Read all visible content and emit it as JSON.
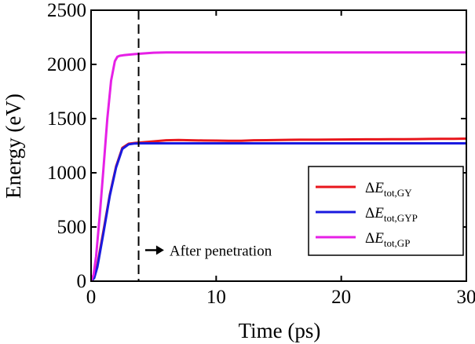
{
  "chart_data": {
    "type": "line",
    "xlabel": "Time (ps)",
    "ylabel": "Energy (eV)",
    "xlim": [
      0,
      30
    ],
    "ylim": [
      0,
      2500
    ],
    "xticks": [
      0,
      10,
      20,
      30
    ],
    "yticks": [
      0,
      500,
      1000,
      1500,
      2000,
      2500
    ],
    "grid": false,
    "legend_position": "right",
    "series": [
      {
        "name": "ΔE",
        "sub": "tot,GY",
        "color": "#e8161c",
        "x": [
          0,
          0.25,
          0.5,
          1.0,
          1.5,
          2.0,
          2.5,
          3.0,
          3.5,
          4.0,
          5,
          6,
          7,
          8,
          9,
          10,
          11,
          12,
          13,
          14,
          15,
          16,
          17,
          18,
          19,
          20,
          21,
          22,
          23,
          24,
          25,
          26,
          27,
          28,
          29,
          30
        ],
        "y": [
          0,
          40,
          150,
          470,
          800,
          1060,
          1230,
          1268,
          1275,
          1280,
          1290,
          1300,
          1302,
          1300,
          1298,
          1297,
          1295,
          1296,
          1300,
          1301,
          1303,
          1304,
          1305,
          1305,
          1306,
          1307,
          1308,
          1309,
          1309,
          1310,
          1310,
          1311,
          1312,
          1313,
          1314,
          1315
        ]
      },
      {
        "name": "ΔE",
        "sub": "tot,GYP",
        "color": "#1a1adf",
        "x": [
          0,
          0.25,
          0.5,
          1.0,
          1.5,
          2.0,
          2.5,
          3.0,
          3.5,
          4.0,
          5,
          6,
          8,
          10,
          12,
          14,
          16,
          18,
          20,
          22,
          24,
          26,
          28,
          30
        ],
        "y": [
          0,
          30,
          130,
          450,
          790,
          1050,
          1220,
          1262,
          1270,
          1272,
          1272,
          1272,
          1272,
          1272,
          1272,
          1272,
          1272,
          1272,
          1272,
          1272,
          1272,
          1272,
          1272,
          1272
        ]
      },
      {
        "name": "ΔE",
        "sub": "tot,GP",
        "color": "#e620e6",
        "x": [
          0,
          0.2,
          0.4,
          0.7,
          1.0,
          1.3,
          1.6,
          1.9,
          2.1,
          2.3,
          2.6,
          3.0,
          3.5,
          4.0,
          5,
          6,
          8,
          10,
          12,
          14,
          16,
          18,
          20,
          22,
          24,
          26,
          28,
          30
        ],
        "y": [
          0,
          60,
          230,
          620,
          1050,
          1500,
          1850,
          2030,
          2070,
          2080,
          2085,
          2090,
          2095,
          2100,
          2108,
          2110,
          2110,
          2110,
          2110,
          2110,
          2110,
          2110,
          2110,
          2110,
          2110,
          2110,
          2110,
          2110
        ]
      }
    ],
    "annotations": [
      {
        "type": "vertical-dashed-line",
        "x": 3.8
      },
      {
        "type": "arrow-text",
        "text": "After penetration",
        "x": 4.2,
        "y": 250
      }
    ]
  }
}
